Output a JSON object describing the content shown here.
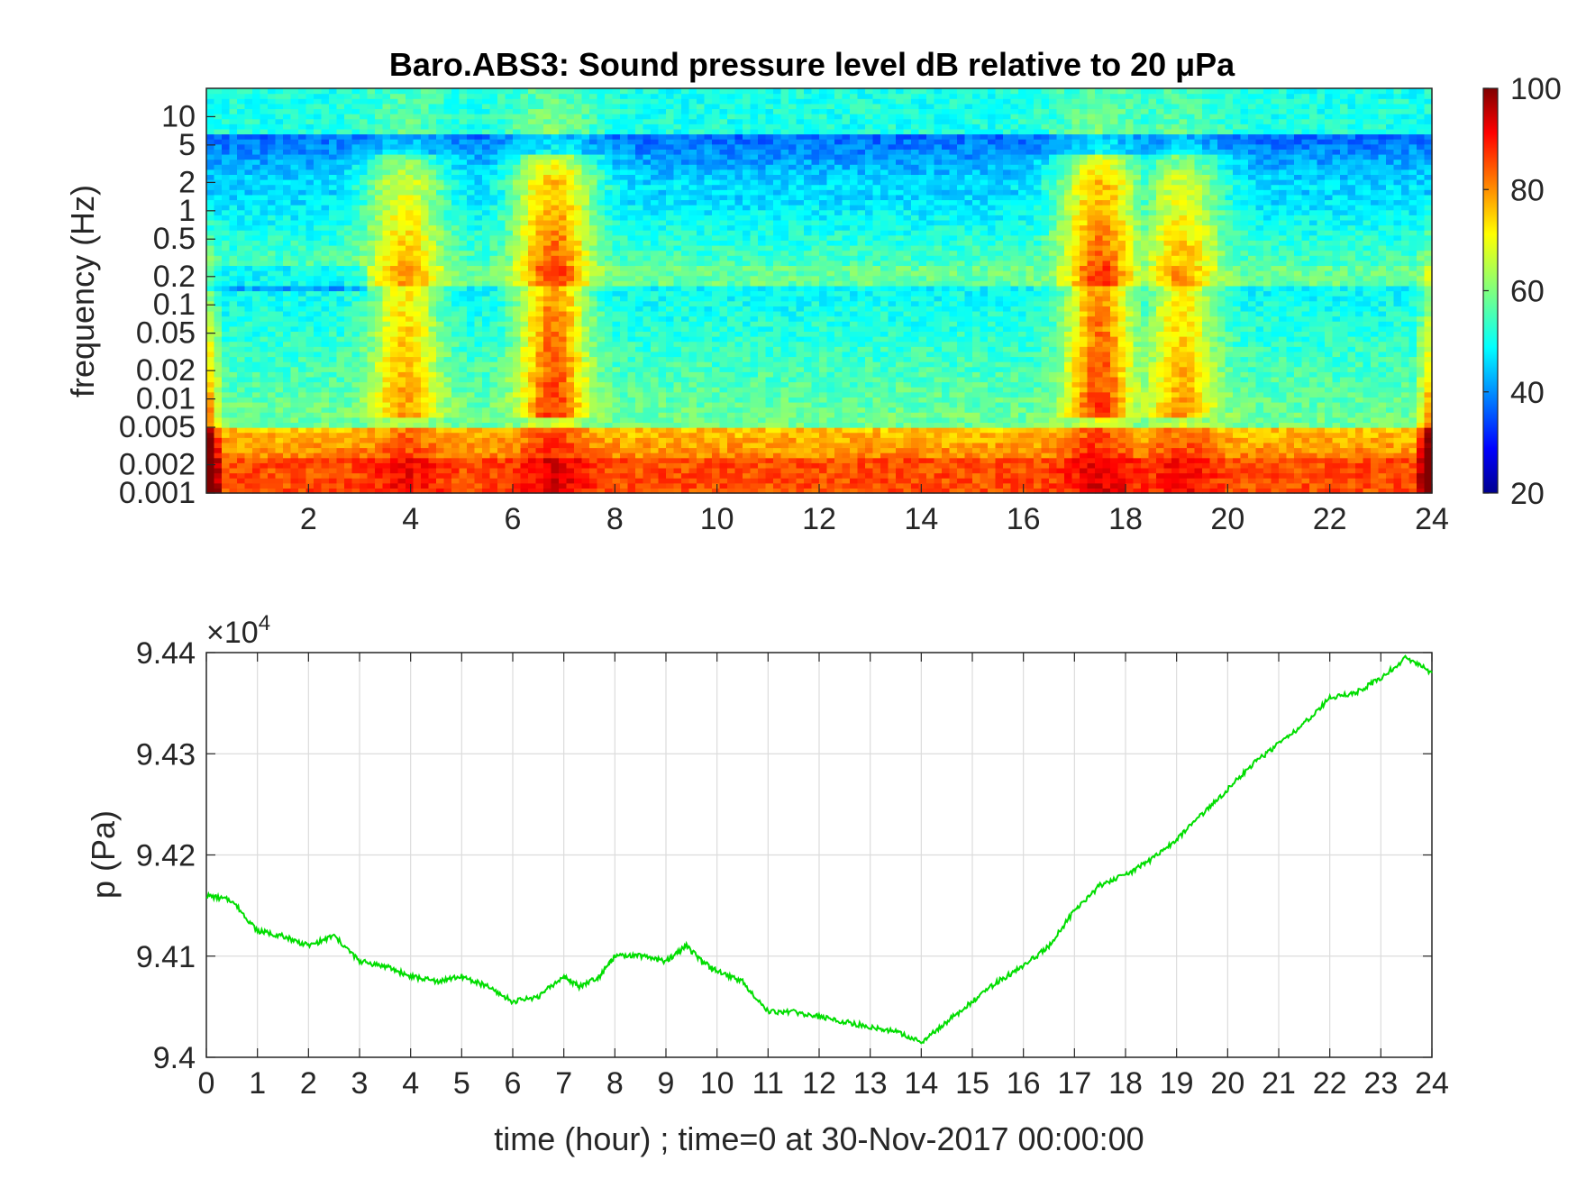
{
  "chart_data": [
    {
      "type": "heatmap",
      "title": "Baro.ABS3: Sound pressure level dB relative to 20 μPa",
      "ylabel": "frequency (Hz)",
      "yscale": "log",
      "xlim": [
        0,
        24
      ],
      "ylim": [
        0.001,
        20
      ],
      "x_ticks": [
        "2",
        "4",
        "6",
        "8",
        "10",
        "12",
        "14",
        "16",
        "18",
        "20",
        "22",
        "24"
      ],
      "y_ticks": [
        "10",
        "5",
        "2",
        "1",
        "0.5",
        "0.2",
        "0.1",
        "0.05",
        "0.02",
        "0.01",
        "0.005",
        "0.002",
        "0.001"
      ],
      "colorbar": {
        "range": [
          20,
          100
        ],
        "ticks": [
          "100",
          "80",
          "60",
          "40",
          "20"
        ],
        "colormap": "jet"
      },
      "events_hours": [
        3.9,
        6.8,
        17.5,
        19.1
      ],
      "colors": {
        "low": "#00008f",
        "mid": "#7fff7f",
        "high": "#800000"
      }
    },
    {
      "type": "line",
      "xlabel": "time (hour) ; time=0 at 30-Nov-2017 00:00:00",
      "ylabel": "p (Pa)",
      "y_multiplier": "×10",
      "y_multiplier_exp": "4",
      "xlim": [
        0,
        24
      ],
      "ylim": [
        94000,
        94400
      ],
      "x_ticks": [
        "0",
        "1",
        "2",
        "3",
        "4",
        "5",
        "6",
        "7",
        "8",
        "9",
        "10",
        "11",
        "12",
        "13",
        "14",
        "15",
        "16",
        "17",
        "18",
        "19",
        "20",
        "21",
        "22",
        "23",
        "24"
      ],
      "y_ticks": [
        "9.44",
        "9.43",
        "9.42",
        "9.41",
        "9.4"
      ],
      "grid": true,
      "series": [
        {
          "color": "#00dd00",
          "x": [
            0,
            0.5,
            1,
            1.5,
            2,
            2.5,
            3,
            3.5,
            4,
            4.5,
            5,
            5.5,
            6,
            6.5,
            7,
            7.3,
            7.7,
            8,
            8.5,
            9,
            9.4,
            9.7,
            10,
            10.5,
            11,
            11.5,
            12,
            12.5,
            13,
            13.5,
            14,
            14.5,
            15,
            15.5,
            16,
            16.5,
            17,
            17.5,
            18,
            18.5,
            19,
            19.5,
            20,
            20.5,
            21,
            21.5,
            22,
            22.5,
            23,
            23.5,
            24
          ],
          "values": [
            94160,
            94155,
            94125,
            94120,
            94110,
            94120,
            94095,
            94090,
            94080,
            94075,
            94080,
            94070,
            94055,
            94060,
            94080,
            94070,
            94080,
            94100,
            94100,
            94095,
            94110,
            94095,
            94085,
            94075,
            94045,
            94045,
            94040,
            94035,
            94030,
            94025,
            94015,
            94035,
            94055,
            94075,
            94090,
            94110,
            94145,
            94170,
            94180,
            94195,
            94215,
            94240,
            94265,
            94290,
            94310,
            94330,
            94355,
            94360,
            94375,
            94395,
            94380
          ]
        }
      ]
    }
  ]
}
